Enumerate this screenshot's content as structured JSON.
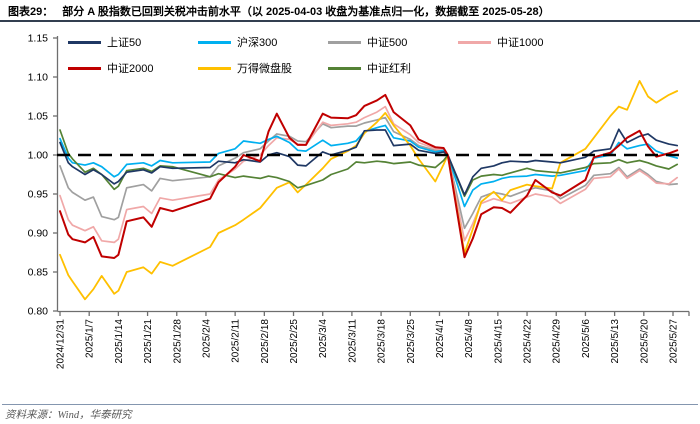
{
  "header": {
    "tag": "图表29：",
    "title": "部分 A 股指数已回到关税冲击前水平（以 2025-04-03 收盘为基准点归一化，数据截至 2025-05-28）"
  },
  "footer": {
    "source": "资料来源：Wind，华泰研究"
  },
  "chart_data": {
    "type": "line",
    "title": "部分 A 股指数已回到关税冲击前水平（以 2025-04-03 收盘为基准点归一化，数据截至 2025-05-28）",
    "normalization_note": "以 2025-04-03 收盘为基准点归一化",
    "legend_position": "top",
    "grid": "off",
    "baseline": {
      "value": 1.0,
      "style": "dashed",
      "color": "#000000"
    },
    "y_axis": {
      "min": 0.8,
      "max": 1.15,
      "step": 0.05,
      "tick_values": [
        0.8,
        0.85,
        0.9,
        0.95,
        1.0,
        1.05,
        1.1,
        1.15
      ],
      "tick_labels": [
        "0.80",
        "0.85",
        "0.90",
        "0.95",
        "1.00",
        "1.05",
        "1.10",
        "1.15"
      ]
    },
    "x_axis": {
      "tick_labels": [
        "2024/12/31",
        "2025/1/7",
        "2025/1/14",
        "2025/1/21",
        "2025/1/28",
        "2025/2/4",
        "2025/2/11",
        "2025/2/18",
        "2025/2/25",
        "2025/3/4",
        "2025/3/11",
        "2025/3/18",
        "2025/3/25",
        "2025/4/1",
        "2025/4/8",
        "2025/4/15",
        "2025/4/22",
        "2025/4/29",
        "2025/5/6",
        "2025/5/13",
        "2025/5/20",
        "2025/5/27"
      ],
      "tick_day_offsets": [
        0,
        7,
        14,
        21,
        28,
        35,
        42,
        49,
        56,
        63,
        70,
        77,
        84,
        91,
        98,
        105,
        112,
        119,
        126,
        133,
        140,
        147
      ]
    },
    "sample_dates": [
      "2024/12/31",
      "2025/1/2",
      "2025/1/3",
      "2025/1/6",
      "2025/1/8",
      "2025/1/10",
      "2025/1/13",
      "2025/1/14",
      "2025/1/16",
      "2025/1/20",
      "2025/1/22",
      "2025/1/24",
      "2025/1/27",
      "2025/2/5",
      "2025/2/7",
      "2025/2/11",
      "2025/2/13",
      "2025/2/17",
      "2025/2/19",
      "2025/2/21",
      "2025/2/24",
      "2025/2/26",
      "2025/2/28",
      "2025/3/4",
      "2025/3/6",
      "2025/3/10",
      "2025/3/12",
      "2025/3/14",
      "2025/3/17",
      "2025/3/19",
      "2025/3/21",
      "2025/3/25",
      "2025/3/27",
      "2025/3/31",
      "2025/4/2",
      "2025/4/3",
      "2025/4/7",
      "2025/4/9",
      "2025/4/11",
      "2025/4/14",
      "2025/4/16",
      "2025/4/18",
      "2025/4/22",
      "2025/4/24",
      "2025/4/28",
      "2025/4/30",
      "2025/5/6",
      "2025/5/8",
      "2025/5/12",
      "2025/5/14",
      "2025/5/16",
      "2025/5/19",
      "2025/5/21",
      "2025/5/23",
      "2025/5/26",
      "2025/5/28"
    ],
    "sample_day_offsets": [
      0,
      2,
      3,
      6,
      8,
      10,
      13,
      14,
      16,
      20,
      22,
      24,
      27,
      36,
      38,
      42,
      44,
      48,
      50,
      52,
      55,
      57,
      59,
      63,
      65,
      69,
      71,
      73,
      76,
      78,
      80,
      84,
      86,
      90,
      92,
      93,
      97,
      99,
      101,
      104,
      106,
      108,
      112,
      114,
      118,
      120,
      126,
      128,
      132,
      134,
      136,
      139,
      141,
      143,
      146,
      148
    ],
    "series": [
      {
        "id": "csi500",
        "name": "中证500",
        "color": "#a0a0a0",
        "width": 1.7,
        "values": [
          0.986,
          0.958,
          0.952,
          0.942,
          0.946,
          0.921,
          0.917,
          0.92,
          0.958,
          0.962,
          0.954,
          0.97,
          0.967,
          0.972,
          0.986,
          0.996,
          1.003,
          1.008,
          1.018,
          1.027,
          1.024,
          1.018,
          1.017,
          1.04,
          1.035,
          1.037,
          1.037,
          1.041,
          1.045,
          1.048,
          1.03,
          1.02,
          1.012,
          1.006,
          1.006,
          1.0,
          0.906,
          0.925,
          0.946,
          0.952,
          0.95,
          0.947,
          0.955,
          0.958,
          0.954,
          0.944,
          0.961,
          0.974,
          0.976,
          0.984,
          0.972,
          0.982,
          0.975,
          0.966,
          0.962,
          0.963
        ]
      },
      {
        "id": "csi1000",
        "name": "中证1000",
        "color": "#f0a8a8",
        "width": 1.7,
        "values": [
          0.948,
          0.917,
          0.91,
          0.903,
          0.908,
          0.89,
          0.888,
          0.892,
          0.93,
          0.934,
          0.925,
          0.945,
          0.942,
          0.95,
          0.968,
          0.982,
          0.992,
          1.0,
          1.012,
          1.022,
          1.02,
          1.014,
          1.013,
          1.042,
          1.038,
          1.04,
          1.042,
          1.048,
          1.055,
          1.062,
          1.04,
          1.026,
          1.016,
          1.008,
          1.007,
          1.0,
          0.89,
          0.912,
          0.938,
          0.944,
          0.941,
          0.938,
          0.946,
          0.95,
          0.946,
          0.938,
          0.956,
          0.97,
          0.972,
          0.982,
          0.97,
          0.98,
          0.973,
          0.964,
          0.963,
          0.971
        ]
      },
      {
        "id": "hs300",
        "name": "沪深300",
        "color": "#00b0f0",
        "width": 1.7,
        "values": [
          1.021,
          0.996,
          0.99,
          0.987,
          0.99,
          0.985,
          0.972,
          0.975,
          0.988,
          0.99,
          0.986,
          0.993,
          0.99,
          0.991,
          1.002,
          1.008,
          1.018,
          1.015,
          1.02,
          1.024,
          1.016,
          1.006,
          1.005,
          1.019,
          1.012,
          1.015,
          1.018,
          1.03,
          1.035,
          1.038,
          1.022,
          1.018,
          1.01,
          1.004,
          1.006,
          1.0,
          0.934,
          0.955,
          0.963,
          0.966,
          0.97,
          0.972,
          0.973,
          0.975,
          0.973,
          0.974,
          0.98,
          0.996,
          1.0,
          1.016,
          1.008,
          1.012,
          1.014,
          1.005,
          0.999,
          0.996
        ]
      },
      {
        "id": "wind-microcap",
        "name": "万得微盘股",
        "color": "#ffc000",
        "width": 1.8,
        "values": [
          0.872,
          0.846,
          0.838,
          0.815,
          0.828,
          0.845,
          0.822,
          0.826,
          0.85,
          0.856,
          0.848,
          0.863,
          0.858,
          0.882,
          0.9,
          0.91,
          0.917,
          0.932,
          0.945,
          0.958,
          0.965,
          0.952,
          0.962,
          0.983,
          0.995,
          1.005,
          1.012,
          1.028,
          1.042,
          1.054,
          1.038,
          1.012,
          0.995,
          0.966,
          0.988,
          1.0,
          0.874,
          0.905,
          0.94,
          0.953,
          0.942,
          0.955,
          0.962,
          0.96,
          0.957,
          0.99,
          1.008,
          1.022,
          1.05,
          1.062,
          1.058,
          1.095,
          1.075,
          1.067,
          1.077,
          1.082
        ]
      },
      {
        "id": "csi-dividend",
        "name": "中证红利",
        "color": "#548235",
        "width": 1.7,
        "values": [
          1.032,
          1.002,
          0.995,
          0.978,
          0.983,
          0.975,
          0.956,
          0.96,
          0.98,
          0.983,
          0.979,
          0.986,
          0.985,
          0.972,
          0.976,
          0.971,
          0.973,
          0.97,
          0.973,
          0.971,
          0.966,
          0.958,
          0.961,
          0.968,
          0.975,
          0.982,
          0.991,
          0.99,
          0.992,
          0.991,
          0.989,
          0.991,
          0.987,
          0.984,
          0.993,
          1.0,
          0.947,
          0.968,
          0.973,
          0.975,
          0.974,
          0.977,
          0.983,
          0.98,
          0.978,
          0.977,
          0.984,
          0.989,
          0.99,
          0.994,
          0.99,
          0.993,
          0.99,
          0.986,
          0.982,
          0.988
        ]
      },
      {
        "id": "sse50",
        "name": "上证50",
        "color": "#1f3864",
        "width": 1.7,
        "values": [
          1.016,
          0.99,
          0.985,
          0.975,
          0.981,
          0.975,
          0.963,
          0.966,
          0.978,
          0.981,
          0.977,
          0.985,
          0.983,
          0.984,
          0.992,
          0.99,
          0.994,
          0.991,
          1.0,
          1.003,
          0.998,
          0.987,
          0.986,
          1.004,
          1.0,
          1.006,
          1.01,
          1.031,
          1.032,
          1.032,
          1.012,
          1.014,
          1.006,
          1.002,
          1.004,
          1.0,
          0.949,
          0.972,
          0.983,
          0.986,
          0.99,
          0.992,
          0.991,
          0.993,
          0.991,
          0.99,
          0.997,
          1.005,
          1.008,
          1.033,
          1.016,
          1.024,
          1.027,
          1.019,
          1.014,
          1.012
        ]
      },
      {
        "id": "csi2000",
        "name": "中证2000",
        "color": "#c00000",
        "width": 2.0,
        "values": [
          0.928,
          0.898,
          0.892,
          0.888,
          0.895,
          0.87,
          0.868,
          0.872,
          0.915,
          0.92,
          0.908,
          0.932,
          0.928,
          0.944,
          0.965,
          0.985,
          1.0,
          0.992,
          1.03,
          1.053,
          1.022,
          1.013,
          1.013,
          1.053,
          1.048,
          1.047,
          1.051,
          1.063,
          1.07,
          1.077,
          1.055,
          1.038,
          1.02,
          1.01,
          1.009,
          1.0,
          0.869,
          0.893,
          0.924,
          0.933,
          0.932,
          0.926,
          0.948,
          0.968,
          0.952,
          0.948,
          0.968,
          0.997,
          1.003,
          1.012,
          1.022,
          1.031,
          1.011,
          0.998,
          1.002,
          1.006
        ]
      }
    ],
    "legend_order": [
      "上证50",
      "沪深300",
      "中证500",
      "中证1000",
      "中证2000",
      "万得微盘股",
      "中证红利"
    ]
  }
}
